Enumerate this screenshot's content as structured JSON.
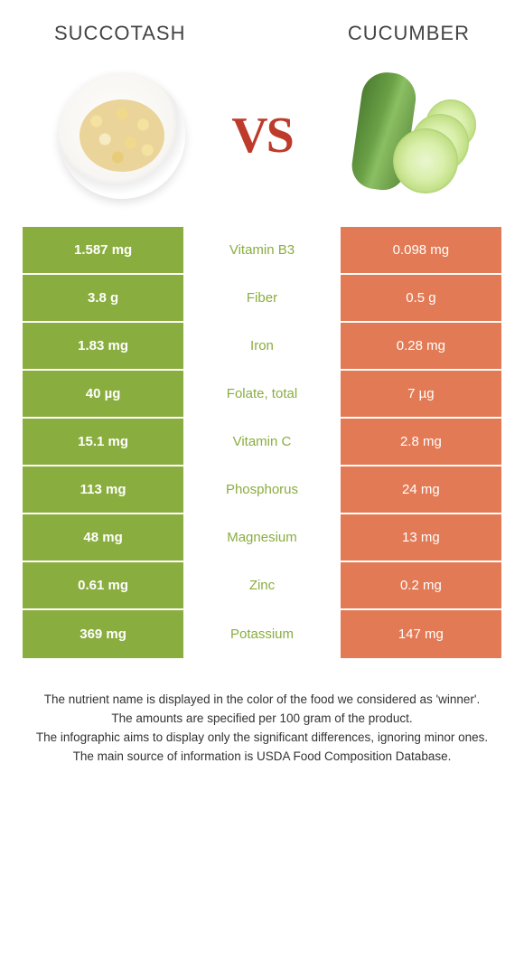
{
  "header": {
    "left_title": "Succotash",
    "right_title": "Cucumber"
  },
  "vs_label": "VS",
  "colors": {
    "left_bg": "#8aad3f",
    "right_bg": "#e27a55",
    "left_text": "#8aad3f",
    "right_text": "#e27a55",
    "vs_color": "#be3a2a"
  },
  "rows": [
    {
      "left": "1.587 mg",
      "label": "Vitamin B3",
      "right": "0.098 mg",
      "winner": "left"
    },
    {
      "left": "3.8 g",
      "label": "Fiber",
      "right": "0.5 g",
      "winner": "left"
    },
    {
      "left": "1.83 mg",
      "label": "Iron",
      "right": "0.28 mg",
      "winner": "left"
    },
    {
      "left": "40 µg",
      "label": "Folate, total",
      "right": "7 µg",
      "winner": "left"
    },
    {
      "left": "15.1 mg",
      "label": "Vitamin C",
      "right": "2.8 mg",
      "winner": "left"
    },
    {
      "left": "113 mg",
      "label": "Phosphorus",
      "right": "24 mg",
      "winner": "left"
    },
    {
      "left": "48 mg",
      "label": "Magnesium",
      "right": "13 mg",
      "winner": "left"
    },
    {
      "left": "0.61 mg",
      "label": "Zinc",
      "right": "0.2 mg",
      "winner": "left"
    },
    {
      "left": "369 mg",
      "label": "Potassium",
      "right": "147 mg",
      "winner": "left"
    }
  ],
  "footnotes": [
    "The nutrient name is displayed in the color of the food we considered as 'winner'.",
    "The amounts are specified per 100 gram of the product.",
    "The infographic aims to display only the significant differences, ignoring minor ones.",
    "The main source of information is USDA Food Composition Database."
  ]
}
